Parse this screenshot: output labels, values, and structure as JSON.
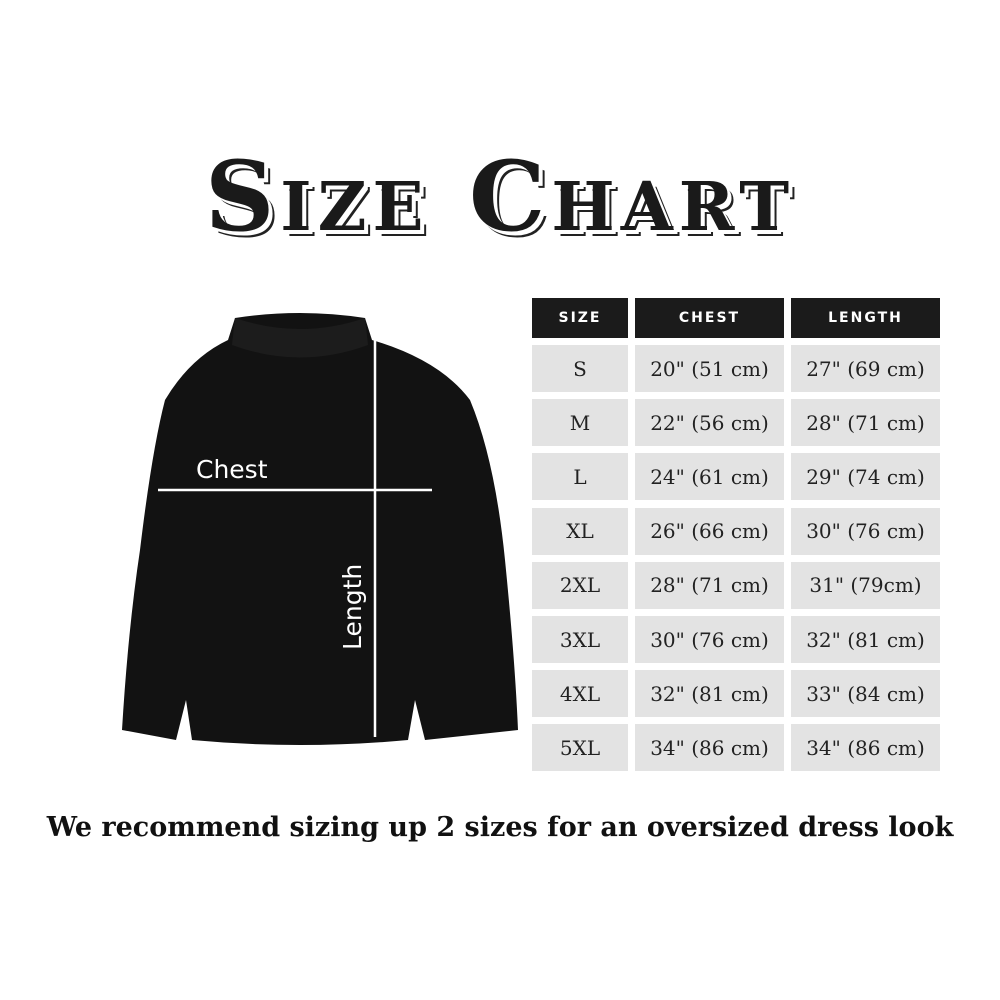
{
  "title": "Size Chart",
  "diagram": {
    "chest_label": "Chest",
    "length_label": "Length"
  },
  "table": {
    "headers": [
      "SIZE",
      "CHEST",
      "LENGTH"
    ],
    "rows": [
      [
        "S",
        "20\" (51 cm)",
        "27\" (69 cm)"
      ],
      [
        "M",
        "22\" (56 cm)",
        "28\" (71 cm)"
      ],
      [
        "L",
        "24\" (61 cm)",
        "29\" (74 cm)"
      ],
      [
        "XL",
        "26\" (66 cm)",
        "30\" (76 cm)"
      ],
      [
        "2XL",
        "28\" (71 cm)",
        "31\" (79cm)"
      ],
      [
        "3XL",
        "30\" (76 cm)",
        "32\" (81 cm)"
      ],
      [
        "4XL",
        "32\" (81 cm)",
        "33\" (84 cm)"
      ],
      [
        "5XL",
        "34\" (86 cm)",
        "34\" (86 cm)"
      ]
    ]
  },
  "note": "We recommend sizing up 2 sizes for an oversized dress look",
  "colors": {
    "header_bg": "#1b1b1b",
    "cell_bg": "#e3e3e3",
    "garment": "#111111"
  }
}
